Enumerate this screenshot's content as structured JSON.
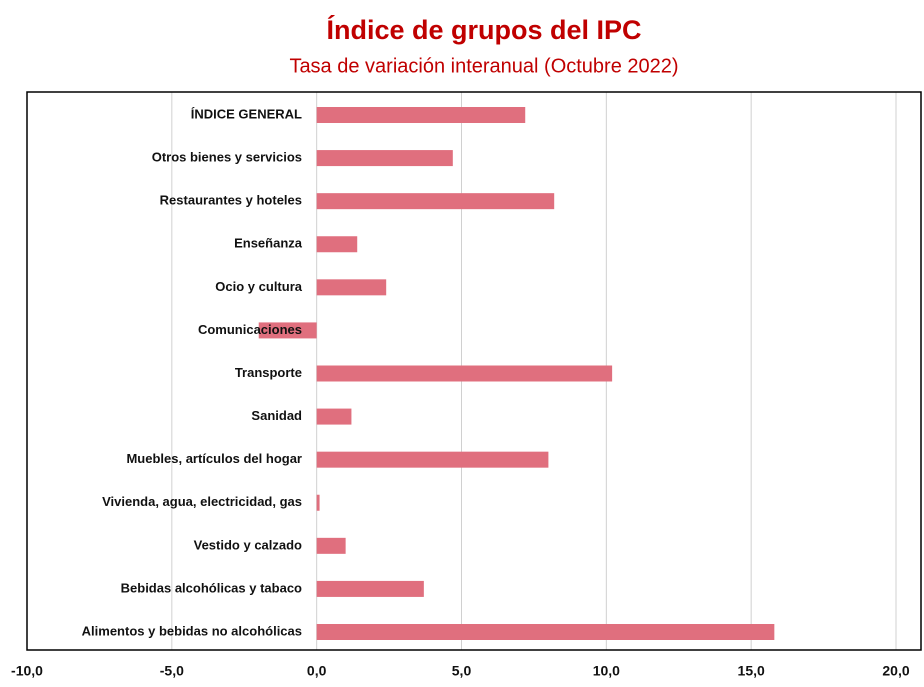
{
  "chart_data": {
    "type": "bar",
    "orientation": "horizontal",
    "title": "Índice de grupos del IPC",
    "subtitle": "Tasa de variación interanual (Octubre 2022)",
    "categories": [
      "ÍNDICE GENERAL",
      "Otros bienes y servicios",
      "Restaurantes y hoteles",
      "Enseñanza",
      "Ocio y cultura",
      "Comunicaciones",
      "Transporte",
      "Sanidad",
      "Muebles, artículos del hogar",
      "Vivienda, agua, electricidad, gas",
      "Vestido y calzado",
      "Bebidas alcohólicas y tabaco",
      "Alimentos y bebidas no alcohólicas"
    ],
    "values": [
      7.2,
      4.7,
      8.2,
      1.4,
      2.4,
      -2.0,
      10.2,
      1.2,
      8.0,
      0.1,
      1.0,
      3.7,
      15.8
    ],
    "color": "#e06f7e",
    "xlim": [
      -10,
      20
    ],
    "xticks": [
      {
        "value": -10,
        "label": "-10,0"
      },
      {
        "value": -5,
        "label": "-5,0"
      },
      {
        "value": 0,
        "label": "0,0"
      },
      {
        "value": 5,
        "label": "5,0"
      },
      {
        "value": 10,
        "label": "10,0"
      },
      {
        "value": 15,
        "label": "15,0"
      },
      {
        "value": 20,
        "label": "20,0"
      }
    ],
    "grid": true
  }
}
